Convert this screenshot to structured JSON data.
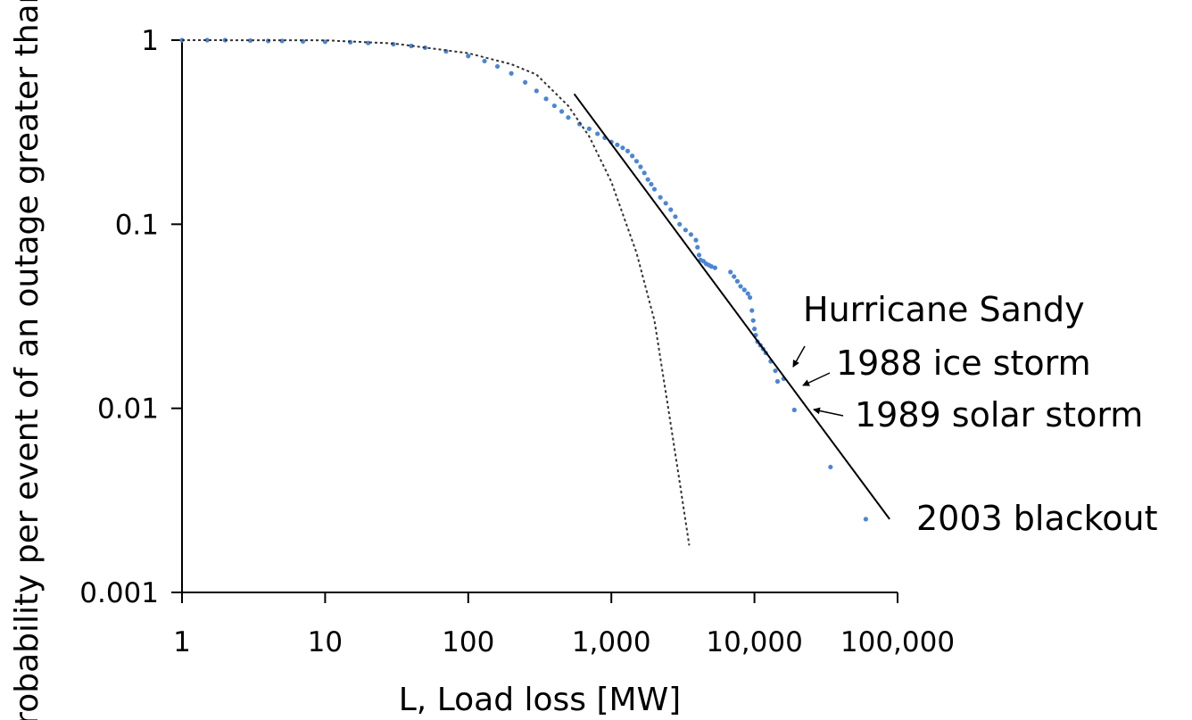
{
  "chart_data": {
    "type": "scatter",
    "xlabel": "L, Load loss [MW]",
    "ylabel": "Probability per event of an outage greater than L",
    "x_scale": "log",
    "y_scale": "log",
    "xlim": [
      1,
      100000
    ],
    "ylim": [
      0.001,
      1
    ],
    "x_ticks": [
      {
        "value": 1,
        "label": "1"
      },
      {
        "value": 10,
        "label": "10"
      },
      {
        "value": 100,
        "label": "100"
      },
      {
        "value": 1000,
        "label": "1,000"
      },
      {
        "value": 10000,
        "label": "10,000"
      },
      {
        "value": 100000,
        "label": "100,000"
      }
    ],
    "y_ticks": [
      {
        "value": 1,
        "label": "1"
      },
      {
        "value": 0.1,
        "label": "0.1"
      },
      {
        "value": 0.01,
        "label": "0.01"
      },
      {
        "value": 0.001,
        "label": "0.001"
      }
    ],
    "grid": false,
    "legend": "none",
    "series": [
      {
        "kind": "points",
        "color": "#4a86d6",
        "x": [
          1,
          1.5,
          2,
          3,
          4,
          5,
          7,
          10,
          15,
          20,
          30,
          40,
          50,
          70,
          100,
          130,
          160,
          200,
          250,
          300,
          350,
          400,
          450,
          500,
          600,
          700,
          800,
          900,
          1000,
          1100,
          1200,
          1300,
          1400,
          1500,
          1600,
          1700,
          1800,
          1900,
          2000,
          2200,
          2400,
          2600,
          2800,
          3000,
          3300,
          3600,
          3900,
          4000,
          4100,
          4200,
          4400,
          4600,
          4800,
          5000,
          5300,
          6800,
          7200,
          7600,
          8000,
          8500,
          9000,
          9300,
          9600,
          9800,
          10000,
          10200,
          10500,
          11000,
          11500,
          12000,
          13000,
          14000,
          14500,
          16000,
          19000,
          34000,
          60000
        ],
        "y": [
          1,
          1,
          1,
          0.995,
          0.99,
          0.99,
          0.985,
          0.98,
          0.975,
          0.965,
          0.95,
          0.93,
          0.91,
          0.87,
          0.82,
          0.77,
          0.72,
          0.66,
          0.59,
          0.53,
          0.48,
          0.44,
          0.41,
          0.38,
          0.35,
          0.33,
          0.31,
          0.295,
          0.28,
          0.27,
          0.26,
          0.25,
          0.235,
          0.22,
          0.205,
          0.19,
          0.175,
          0.165,
          0.155,
          0.14,
          0.13,
          0.12,
          0.11,
          0.1,
          0.093,
          0.088,
          0.082,
          0.075,
          0.068,
          0.064,
          0.063,
          0.061,
          0.06,
          0.059,
          0.058,
          0.055,
          0.052,
          0.049,
          0.046,
          0.044,
          0.042,
          0.04,
          0.034,
          0.03,
          0.027,
          0.025,
          0.023,
          0.022,
          0.021,
          0.02,
          0.018,
          0.016,
          0.014,
          0.0145,
          0.0098,
          0.0048,
          0.0025
        ]
      },
      {
        "kind": "fit-line",
        "style": "solid",
        "color": "#000000",
        "x": [
          550,
          88000
        ],
        "y": [
          0.51,
          0.0025
        ]
      },
      {
        "kind": "fit-curve",
        "style": "dotted",
        "color": "#333333",
        "x": [
          1,
          10,
          30,
          100,
          200,
          300,
          500,
          700,
          1000,
          1500,
          2000,
          2500,
          3000,
          3500
        ],
        "y": [
          1,
          0.998,
          0.96,
          0.85,
          0.74,
          0.65,
          0.44,
          0.3,
          0.17,
          0.07,
          0.03,
          0.01,
          0.004,
          0.0018
        ]
      }
    ],
    "annotations": [
      {
        "label": "Hurricane Sandy",
        "x": 17500,
        "y": 0.0155
      },
      {
        "label": "1988 ice storm",
        "x": 21000,
        "y": 0.0125
      },
      {
        "label": "1989 solar storm",
        "x": 25000,
        "y": 0.0102
      },
      {
        "label": "2003 blackout",
        "x": 60000,
        "y": 0.0025
      }
    ]
  }
}
